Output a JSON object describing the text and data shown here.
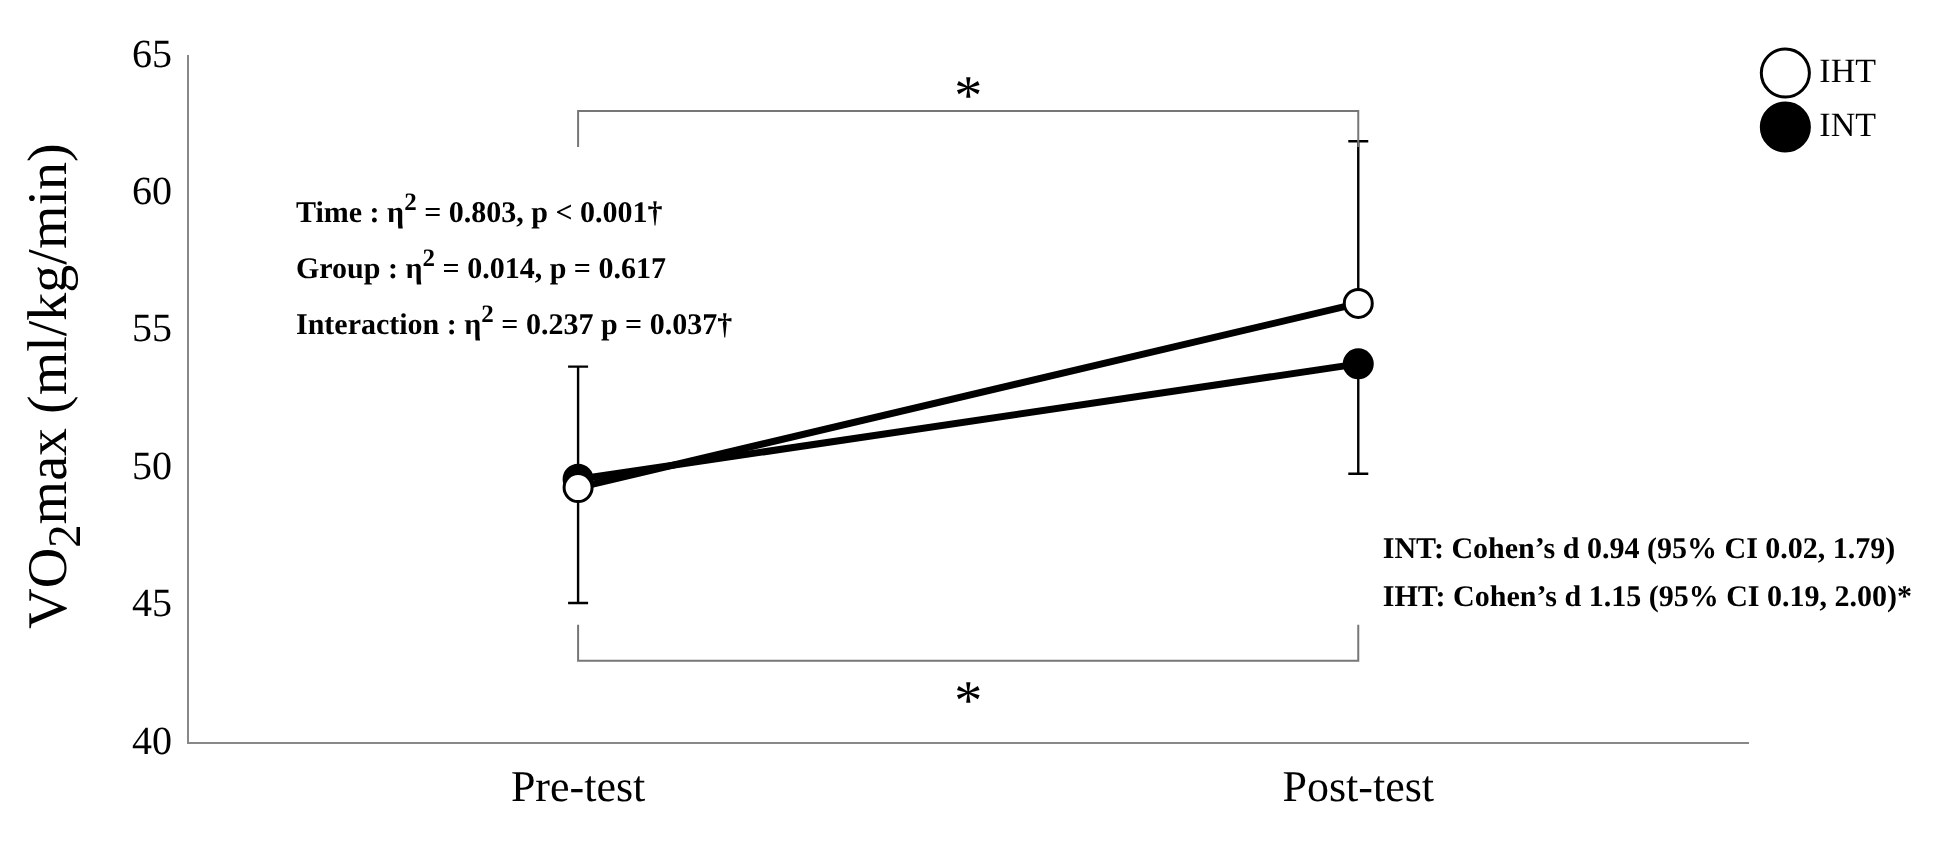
{
  "chart_data": {
    "type": "line",
    "ylabel": "VO$_{2}$max (ml/kg/min)",
    "categories": [
      "Pre-test",
      "Post-test"
    ],
    "series": [
      {
        "name": "INT",
        "color": "#000000",
        "values": [
          49.6,
          53.8
        ],
        "errors": [
          [
            45.1,
            49.6
          ],
          [
            49.8,
            53.8
          ]
        ]
      },
      {
        "name": "IHT",
        "color": "#000000",
        "values": [
          49.3,
          56.0
        ],
        "errors": [
          [
            49.3,
            53.7
          ],
          [
            56.0,
            61.9
          ]
        ]
      }
    ],
    "ylim": [
      40,
      65
    ],
    "yticks": [
      40,
      45,
      50,
      55,
      60,
      65
    ],
    "grid": false,
    "legend": "top right",
    "marker": "circle",
    "line_style": "solid",
    "annotations": [
      "*",
      "Time : η$^{2}$ = 0.803, p < 0.001†",
      "Group : η$^{2}$ = 0.014, p = 0.617",
      "Interaction : η$^{2}$ = 0.237 p = 0.037†",
      "*",
      "INT: Cohen’s d 0.94 (95% CI 0.02, 1.79)",
      "IHT: Cohen’s d 1.15 (95% CI 0.19, 2.00)*"
    ]
  }
}
